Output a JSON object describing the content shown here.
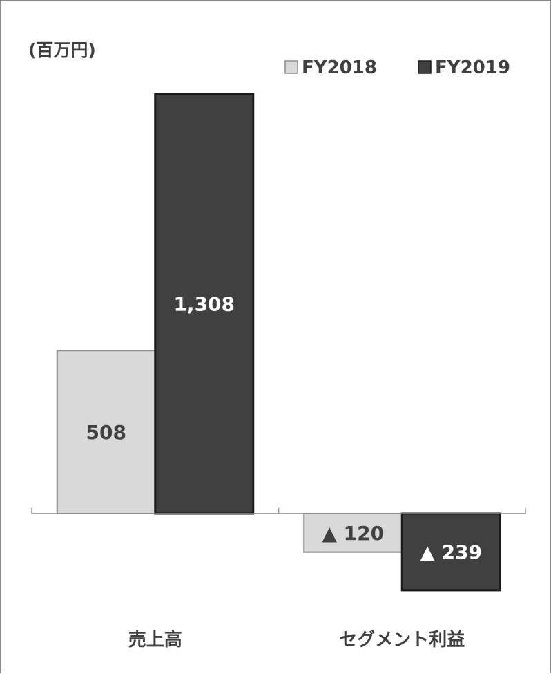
{
  "chart_data": {
    "type": "bar",
    "unit_label": "(百万円)",
    "categories": [
      "売上高",
      "セグメント利益"
    ],
    "series": [
      {
        "name": "FY2018",
        "values": [
          508,
          -120
        ],
        "data_labels": [
          "508",
          "▲ 120"
        ],
        "fill": "#d9d9d9",
        "stroke": "#8c8c8c"
      },
      {
        "name": "FY2019",
        "values": [
          1308,
          -239
        ],
        "data_labels": [
          "1,308",
          "▲ 239"
        ],
        "fill": "#404040",
        "stroke": "#1a1a1a"
      }
    ],
    "legend_position": "top-right",
    "grid": false
  }
}
